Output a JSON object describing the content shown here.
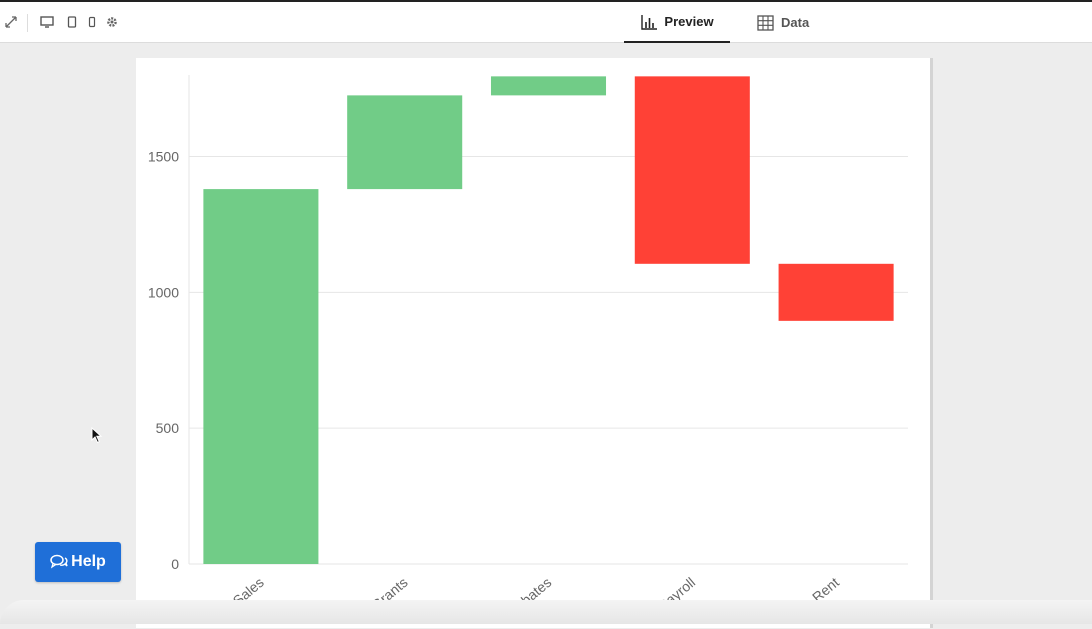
{
  "toolbar": {
    "icons": [
      "expand-icon",
      "desktop-icon",
      "tablet-icon",
      "mobile-icon",
      "gear-icon"
    ]
  },
  "tabs": [
    {
      "label": "Preview",
      "icon": "bar-chart-icon",
      "active": true
    },
    {
      "label": "Data",
      "icon": "table-grid-icon",
      "active": false
    }
  ],
  "help_button": {
    "label": "Help",
    "icon": "chat-bubbles-icon"
  },
  "chart_data": {
    "type": "waterfall",
    "categories": [
      "Sales",
      "Grants",
      "Rebates",
      "Payroll",
      "Rent"
    ],
    "values": [
      1380,
      345,
      70,
      -690,
      -210
    ],
    "ylim": [
      0,
      1800
    ],
    "yticks": [
      0,
      500,
      1000,
      1500
    ],
    "grid": true,
    "colors": {
      "increase": "#71cc87",
      "decrease": "#ff4136",
      "grid": "#e6e6e6",
      "axis": "#cccccc"
    }
  }
}
